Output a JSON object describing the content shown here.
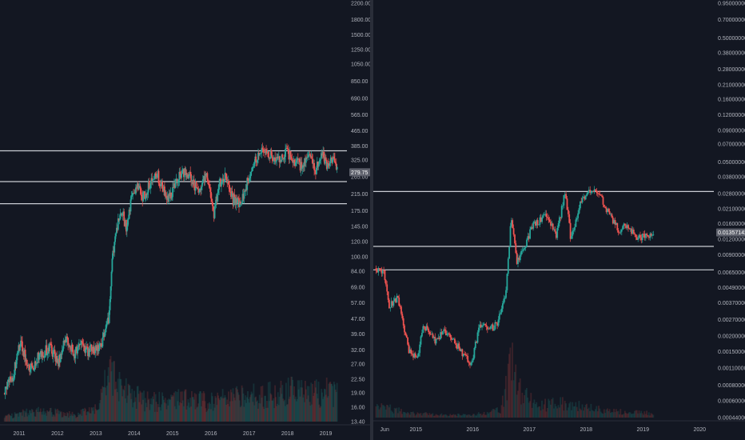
{
  "colors": {
    "background": "#131722",
    "up": "#26a69a",
    "down": "#ef5350",
    "hline": "#c9ccd3",
    "axis_text": "#b2b5be"
  },
  "chart_data": [
    {
      "type": "candlestick",
      "scale": "log",
      "ylim": [
        13.4,
        2200
      ],
      "yticks": [
        2200,
        1800,
        1500,
        1250,
        1050,
        850,
        690,
        565,
        465,
        385,
        325,
        265,
        215,
        175,
        145,
        120,
        100,
        84,
        69,
        57,
        47,
        39,
        32,
        27,
        22.5,
        19,
        16,
        13.4
      ],
      "ytick_labels": [
        "2200.00",
        "1800.00",
        "1500.00",
        "1250.00",
        "1050.00",
        "850.00",
        "690.00",
        "565.00",
        "465.00",
        "385.00",
        "325.00",
        "265.00",
        "215.00",
        "175.00",
        "145.00",
        "120.00",
        "100.00",
        "84.00",
        "69.00",
        "57.00",
        "47.00",
        "39.00",
        "32.00",
        "27.00",
        "22.50",
        "19.00",
        "16.00",
        "13.40"
      ],
      "xticks": [
        "2011",
        "2012",
        "2013",
        "2014",
        "2015",
        "2016",
        "2017",
        "2018",
        "2019"
      ],
      "xtick_pos": [
        2011,
        2012,
        2013,
        2014,
        2015,
        2016,
        2017,
        2018,
        2019
      ],
      "x_range": [
        2010.5,
        2019.55
      ],
      "last_price": 279.75,
      "last_price_label": "279.75",
      "hlines": [
        364,
        250,
        191
      ],
      "price_path": [
        [
          2010.62,
          19
        ],
        [
          2010.85,
          23
        ],
        [
          2011.05,
          35
        ],
        [
          2011.3,
          25
        ],
        [
          2011.55,
          30
        ],
        [
          2011.8,
          33
        ],
        [
          2012.05,
          28
        ],
        [
          2012.25,
          38
        ],
        [
          2012.45,
          30
        ],
        [
          2012.6,
          36
        ],
        [
          2012.75,
          31
        ],
        [
          2012.9,
          33
        ],
        [
          2013.05,
          32
        ],
        [
          2013.15,
          35
        ],
        [
          2013.25,
          38
        ],
        [
          2013.35,
          47
        ],
        [
          2013.45,
          95
        ],
        [
          2013.55,
          140
        ],
        [
          2013.7,
          175
        ],
        [
          2013.82,
          140
        ],
        [
          2013.95,
          200
        ],
        [
          2014.1,
          248
        ],
        [
          2014.25,
          205
        ],
        [
          2014.45,
          250
        ],
        [
          2014.6,
          280
        ],
        [
          2014.78,
          225
        ],
        [
          2014.95,
          205
        ],
        [
          2015.1,
          250
        ],
        [
          2015.35,
          285
        ],
        [
          2015.55,
          250
        ],
        [
          2015.7,
          215
        ],
        [
          2015.9,
          270
        ],
        [
          2016.1,
          170
        ],
        [
          2016.25,
          250
        ],
        [
          2016.42,
          265
        ],
        [
          2016.6,
          200
        ],
        [
          2016.8,
          195
        ],
        [
          2017.05,
          280
        ],
        [
          2017.2,
          330
        ],
        [
          2017.4,
          370
        ],
        [
          2017.6,
          345
        ],
        [
          2017.8,
          330
        ],
        [
          2018.0,
          355
        ],
        [
          2018.2,
          320
        ],
        [
          2018.4,
          300
        ],
        [
          2018.6,
          355
        ],
        [
          2018.75,
          285
        ],
        [
          2018.9,
          360
        ],
        [
          2019.05,
          300
        ],
        [
          2019.2,
          330
        ],
        [
          2019.32,
          280
        ]
      ],
      "volume_path": [
        [
          2010.62,
          0.05
        ],
        [
          2011.0,
          0.08
        ],
        [
          2011.6,
          0.1
        ],
        [
          2012.5,
          0.07
        ],
        [
          2013.0,
          0.12
        ],
        [
          2013.4,
          0.5
        ],
        [
          2013.6,
          0.35
        ],
        [
          2013.8,
          0.3
        ],
        [
          2014.3,
          0.2
        ],
        [
          2015.0,
          0.22
        ],
        [
          2016.0,
          0.2
        ],
        [
          2017.0,
          0.25
        ],
        [
          2018.0,
          0.3
        ],
        [
          2018.5,
          0.28
        ],
        [
          2019.0,
          0.3
        ],
        [
          2019.32,
          0.25
        ]
      ]
    },
    {
      "type": "candlestick",
      "scale": "log",
      "ylim": [
        0.00044,
        0.95
      ],
      "yticks": [
        0.95,
        0.7,
        0.5,
        0.38,
        0.28,
        0.21,
        0.16,
        0.12,
        0.09,
        0.07,
        0.05,
        0.038,
        0.028,
        0.021,
        0.016,
        0.012,
        0.009,
        0.0065,
        0.0049,
        0.0037,
        0.0027,
        0.002,
        0.0015,
        0.0011,
        0.0008,
        0.0006,
        0.00044
      ],
      "ytick_labels": [
        "0.95000000",
        "0.70000000",
        "0.50000000",
        "0.38000000",
        "0.28000000",
        "0.21000000",
        "0.16000000",
        "0.12000000",
        "0.09000000",
        "0.07000000",
        "0.05000000",
        "0.03800000",
        "0.02800000",
        "0.02100000",
        "0.01600000",
        "0.01200000",
        "0.00900000",
        "0.00650000",
        "0.00490000",
        "0.00370000",
        "0.00270000",
        "0.00200000",
        "0.00150000",
        "0.00110000",
        "0.00080000",
        "0.00060000",
        "0.00044000"
      ],
      "xticks": [
        "Jun",
        "2015",
        "2016",
        "2017",
        "2018",
        "2019",
        "2020"
      ],
      "xtick_pos": [
        2014.45,
        2015.0,
        2016.0,
        2017.0,
        2018.0,
        2019.0,
        2020.0
      ],
      "x_range": [
        2014.25,
        2020.25
      ],
      "last_price": 0.01357142,
      "last_price_label": "0.01357142",
      "hlines": [
        0.029,
        0.0105,
        0.0068
      ],
      "price_path": [
        [
          2014.3,
          0.007
        ],
        [
          2014.45,
          0.0065
        ],
        [
          2014.55,
          0.0035
        ],
        [
          2014.7,
          0.004
        ],
        [
          2014.9,
          0.0015
        ],
        [
          2015.05,
          0.0013
        ],
        [
          2015.15,
          0.0025
        ],
        [
          2015.35,
          0.0018
        ],
        [
          2015.5,
          0.0022
        ],
        [
          2015.7,
          0.0018
        ],
        [
          2015.85,
          0.0014
        ],
        [
          2016.0,
          0.0012
        ],
        [
          2016.15,
          0.0025
        ],
        [
          2016.3,
          0.0022
        ],
        [
          2016.45,
          0.0025
        ],
        [
          2016.6,
          0.0042
        ],
        [
          2016.7,
          0.018
        ],
        [
          2016.8,
          0.008
        ],
        [
          2016.95,
          0.011
        ],
        [
          2017.1,
          0.016
        ],
        [
          2017.3,
          0.018
        ],
        [
          2017.5,
          0.013
        ],
        [
          2017.65,
          0.03
        ],
        [
          2017.75,
          0.012
        ],
        [
          2017.9,
          0.022
        ],
        [
          2018.05,
          0.029
        ],
        [
          2018.25,
          0.028
        ],
        [
          2018.45,
          0.018
        ],
        [
          2018.6,
          0.014
        ],
        [
          2018.75,
          0.016
        ],
        [
          2018.9,
          0.012
        ],
        [
          2019.05,
          0.0125
        ],
        [
          2019.2,
          0.0135
        ]
      ],
      "volume_path": [
        [
          2014.3,
          0.15
        ],
        [
          2014.6,
          0.08
        ],
        [
          2015.0,
          0.04
        ],
        [
          2015.5,
          0.03
        ],
        [
          2016.0,
          0.03
        ],
        [
          2016.5,
          0.08
        ],
        [
          2016.7,
          0.55
        ],
        [
          2016.85,
          0.25
        ],
        [
          2017.2,
          0.12
        ],
        [
          2017.6,
          0.15
        ],
        [
          2018.0,
          0.1
        ],
        [
          2018.5,
          0.06
        ],
        [
          2019.0,
          0.05
        ],
        [
          2019.2,
          0.04
        ]
      ]
    }
  ]
}
